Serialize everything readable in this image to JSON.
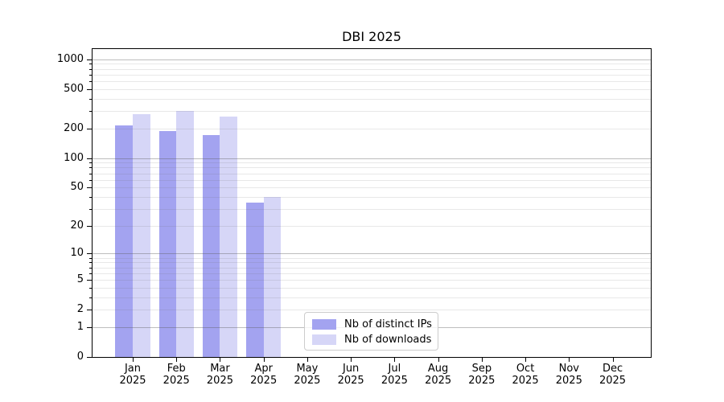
{
  "chart_data": {
    "type": "bar",
    "title": "DBI 2025",
    "categories": [
      {
        "month": "Jan",
        "year": "2025"
      },
      {
        "month": "Feb",
        "year": "2025"
      },
      {
        "month": "Mar",
        "year": "2025"
      },
      {
        "month": "Apr",
        "year": "2025"
      },
      {
        "month": "May",
        "year": "2025"
      },
      {
        "month": "Jun",
        "year": "2025"
      },
      {
        "month": "Jul",
        "year": "2025"
      },
      {
        "month": "Aug",
        "year": "2025"
      },
      {
        "month": "Sep",
        "year": "2025"
      },
      {
        "month": "Oct",
        "year": "2025"
      },
      {
        "month": "Nov",
        "year": "2025"
      },
      {
        "month": "Dec",
        "year": "2025"
      }
    ],
    "series": [
      {
        "id": "distinct-ips",
        "name": "Nb of distinct IPs",
        "color": "#a3a3f0",
        "values": [
          215,
          190,
          172,
          35,
          0,
          0,
          0,
          0,
          0,
          0,
          0,
          0
        ]
      },
      {
        "id": "downloads",
        "name": "Nb of downloads",
        "color": "#d6d6f7",
        "values": [
          280,
          300,
          265,
          40,
          0,
          0,
          0,
          0,
          0,
          0,
          0,
          0
        ]
      }
    ],
    "y_axis": {
      "scale": "log10(value+1)",
      "ticks": [
        0,
        1,
        2,
        5,
        10,
        20,
        50,
        100,
        200,
        500,
        1000
      ],
      "major_gridlines": [
        1,
        10,
        100,
        1000
      ]
    },
    "legend": {
      "position": "lower-center-inside"
    },
    "grid": {
      "minor_color": "#e8e8e8",
      "major_color": "#c0c0c0",
      "on": true
    }
  }
}
